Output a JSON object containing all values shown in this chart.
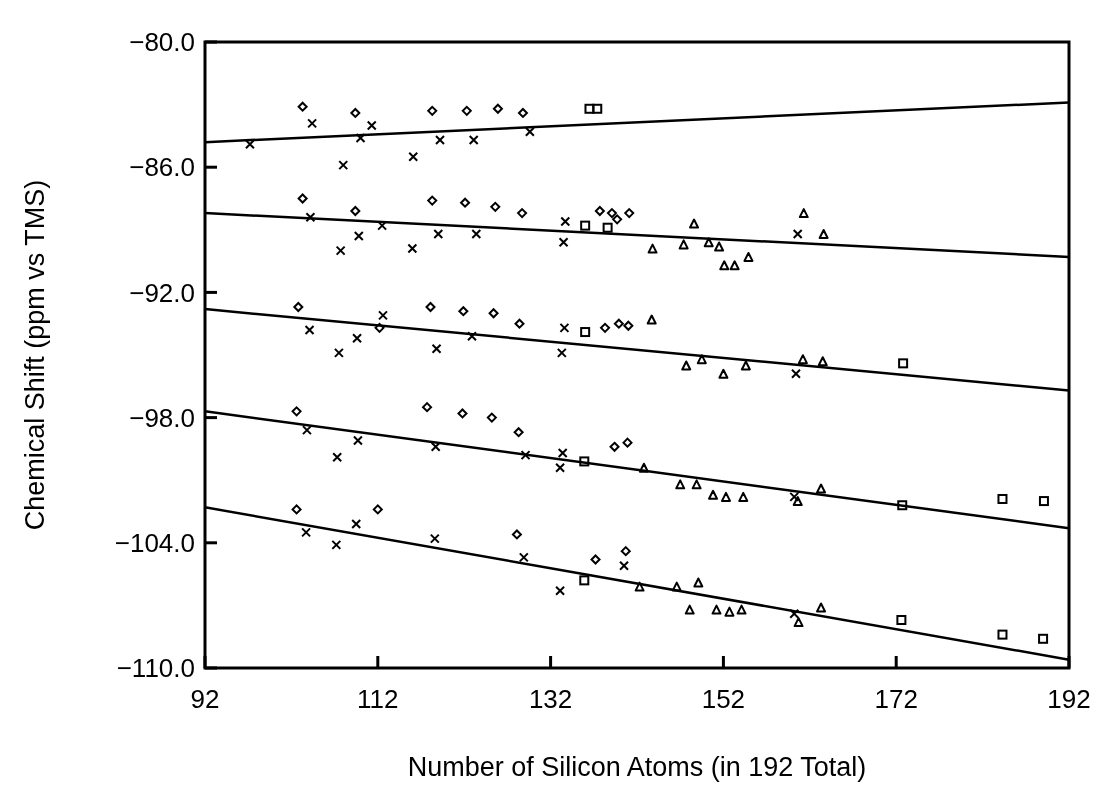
{
  "chart_data": {
    "type": "scatter",
    "xlabel": "Number of Silicon Atoms (in 192 Total)",
    "ylabel": "Chemical Shift (ppm vs TMS)",
    "xlim": [
      92,
      192
    ],
    "ylim": [
      -110,
      -80
    ],
    "xticks": [
      92,
      112,
      132,
      152,
      172,
      192
    ],
    "yticks": [
      {
        "value": -80,
        "label": "−80.0"
      },
      {
        "value": -86,
        "label": "−86.0"
      },
      {
        "value": -92,
        "label": "−92.0"
      },
      {
        "value": -98,
        "label": "−98.0"
      },
      {
        "value": -104,
        "label": "−104.0"
      },
      {
        "value": -110,
        "label": "−110.0"
      }
    ],
    "grid": false,
    "series": [
      {
        "type": "scatter",
        "marker": "diamond",
        "color": "#000000",
        "x": [
          103.3,
          109.4,
          118.3,
          122.3,
          125.9,
          128.8,
          103.3,
          109.4,
          118.3,
          122.1,
          125.6,
          128.7,
          137.7,
          139.1,
          141.1,
          139.7,
          102.8,
          112.2,
          118.1,
          121.9,
          125.4,
          128.4,
          138.3,
          139.9,
          141.0,
          102.6,
          117.7,
          121.8,
          125.2,
          128.3,
          140.9,
          139.4,
          102.6,
          112.0,
          128.1,
          137.2,
          140.7
        ],
        "values": [
          -83.1,
          -83.4,
          -83.3,
          -83.3,
          -83.2,
          -83.4,
          -87.5,
          -88.1,
          -87.6,
          -87.7,
          -87.9,
          -88.2,
          -88.1,
          -88.2,
          -88.2,
          -88.5,
          -92.7,
          -93.7,
          -92.7,
          -92.9,
          -93.0,
          -93.5,
          -93.7,
          -93.5,
          -93.6,
          -97.7,
          -97.5,
          -97.8,
          -98.0,
          -98.7,
          -99.2,
          -99.4,
          -102.4,
          -102.4,
          -103.6,
          -104.8,
          -104.4
        ]
      },
      {
        "type": "scatter",
        "marker": "cross",
        "color": "#000000",
        "x": [
          104.4,
          129.6,
          119.2,
          104.2,
          119.0,
          133.7,
          160.6,
          104.1,
          118.8,
          133.6,
          160.4,
          103.8,
          118.7,
          129.1,
          133.4,
          160.2,
          103.7,
          118.6,
          128.9,
          133.1,
          160.2,
          108.0,
          116.1,
          123.1,
          110.0,
          111.3,
          107.7,
          109.8,
          116.0,
          123.4,
          133.5,
          112.5,
          107.5,
          109.6,
          112.6,
          122.9,
          133.3,
          107.3,
          109.7,
          133.1,
          107.2,
          109.5,
          140.5,
          97.2
        ],
        "values": [
          -83.9,
          -84.3,
          -84.7,
          -88.4,
          -89.2,
          -88.6,
          -89.2,
          -93.8,
          -94.7,
          -93.7,
          -95.9,
          -98.6,
          -99.4,
          -99.8,
          -99.7,
          -101.8,
          -103.5,
          -103.8,
          -104.7,
          -106.3,
          -107.4,
          -85.9,
          -85.5,
          -84.7,
          -84.6,
          -84.0,
          -90.0,
          -89.3,
          -89.9,
          -89.2,
          -89.6,
          -88.8,
          -94.9,
          -94.2,
          -93.1,
          -94.1,
          -94.9,
          -99.9,
          -99.1,
          -100.4,
          -104.1,
          -103.1,
          -105.1,
          -84.9
        ]
      },
      {
        "type": "scatter",
        "marker": "square",
        "color": "#000000",
        "x": [
          136.5,
          137.4,
          136.0,
          138.6,
          136.0,
          172.8,
          135.9,
          172.7,
          184.3,
          189.1,
          135.9,
          172.6,
          184.3,
          189.0
        ],
        "values": [
          -83.2,
          -83.2,
          -88.8,
          -88.9,
          -93.9,
          -95.4,
          -100.1,
          -102.2,
          -101.9,
          -102.0,
          -105.8,
          -107.7,
          -108.4,
          -108.6
        ]
      },
      {
        "type": "scatter",
        "marker": "triangle",
        "color": "#000000",
        "x": [
          148.6,
          147.4,
          150.3,
          151.5,
          152.1,
          153.3,
          154.9,
          161.3,
          163.6,
          143.8,
          147.7,
          149.5,
          152.0,
          154.6,
          161.2,
          163.5,
          143.7,
          147.0,
          148.9,
          150.8,
          152.3,
          154.3,
          160.6,
          163.3,
          142.8,
          146.6,
          149.1,
          148.1,
          151.2,
          152.7,
          154.1,
          160.7,
          163.3,
          142.3
        ],
        "values": [
          -88.7,
          -89.7,
          -89.6,
          -89.8,
          -90.7,
          -90.7,
          -90.3,
          -88.2,
          -89.2,
          -89.9,
          -95.5,
          -95.2,
          -95.9,
          -95.5,
          -95.2,
          -95.3,
          -93.3,
          -101.2,
          -101.2,
          -101.7,
          -101.8,
          -101.8,
          -102.0,
          -101.4,
          -100.4,
          -106.1,
          -105.9,
          -107.2,
          -107.2,
          -107.3,
          -107.2,
          -107.8,
          -107.1,
          -106.1
        ]
      },
      {
        "type": "line",
        "marker": "none",
        "line_style": "solid",
        "color": "#000000",
        "x": [
          92,
          192
        ],
        "values": [
          -84.8,
          -82.9
        ]
      },
      {
        "type": "line",
        "marker": "none",
        "line_style": "solid",
        "color": "#000000",
        "x": [
          92,
          192
        ],
        "values": [
          -88.2,
          -90.3
        ]
      },
      {
        "type": "line",
        "marker": "none",
        "line_style": "solid",
        "color": "#000000",
        "x": [
          92,
          192
        ],
        "values": [
          -92.8,
          -96.7
        ]
      },
      {
        "type": "line",
        "marker": "none",
        "line_style": "solid",
        "color": "#000000",
        "x": [
          92,
          192
        ],
        "values": [
          -97.7,
          -103.3
        ]
      },
      {
        "type": "line",
        "marker": "none",
        "line_style": "solid",
        "color": "#000000",
        "x": [
          92,
          192
        ],
        "values": [
          -102.3,
          -109.6
        ]
      }
    ]
  }
}
